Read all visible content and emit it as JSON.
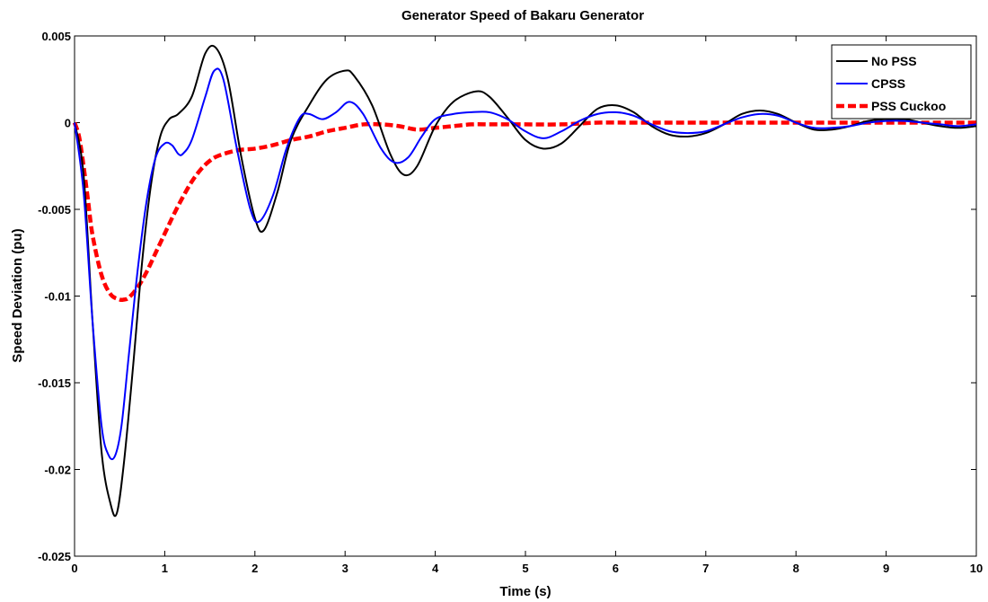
{
  "chart_data": {
    "type": "line",
    "title": "Generator Speed of Bakaru Generator",
    "xlabel": "Time (s)",
    "ylabel": "Speed Deviation (pu)",
    "xlim": [
      0,
      10
    ],
    "ylim": [
      -0.025,
      0.005
    ],
    "x_ticks": [
      0,
      1,
      2,
      3,
      4,
      5,
      6,
      7,
      8,
      9,
      10
    ],
    "x_tick_labels": [
      "0",
      "1",
      "2",
      "3",
      "4",
      "5",
      "6",
      "7",
      "8",
      "9",
      "10"
    ],
    "y_ticks": [
      0.005,
      0,
      -0.005,
      -0.01,
      -0.015,
      -0.02,
      -0.025
    ],
    "y_tick_labels": [
      "0.005",
      "0",
      "-0.005",
      "-0.01",
      "-0.015",
      "-0.02",
      "-0.025"
    ],
    "grid": false,
    "legend_position": "top-right",
    "series": [
      {
        "name": "No PSS",
        "color": "#000000",
        "style": "solid",
        "x": [
          0,
          0.1,
          0.2,
          0.3,
          0.4,
          0.47,
          0.55,
          0.65,
          0.75,
          0.85,
          0.95,
          1.05,
          1.15,
          1.3,
          1.45,
          1.57,
          1.7,
          1.85,
          2.0,
          2.1,
          2.25,
          2.4,
          2.6,
          2.8,
          3.0,
          3.1,
          3.3,
          3.5,
          3.65,
          3.8,
          4.0,
          4.2,
          4.45,
          4.6,
          4.8,
          5.0,
          5.2,
          5.4,
          5.6,
          5.8,
          6.0,
          6.2,
          6.4,
          6.6,
          6.8,
          7.0,
          7.2,
          7.4,
          7.6,
          7.8,
          8.0,
          8.2,
          8.4,
          8.6,
          8.8,
          9.0,
          9.2,
          9.4,
          9.6,
          9.8,
          10.0
        ],
        "y": [
          0,
          -0.003,
          -0.0115,
          -0.019,
          -0.022,
          -0.0225,
          -0.0195,
          -0.014,
          -0.008,
          -0.0035,
          -0.0008,
          0.0002,
          0.0005,
          0.0015,
          0.004,
          0.0043,
          0.0025,
          -0.002,
          -0.0055,
          -0.0062,
          -0.004,
          -0.001,
          0.001,
          0.0025,
          0.003,
          0.0027,
          0.001,
          -0.0018,
          -0.003,
          -0.0025,
          -0.0002,
          0.0012,
          0.0018,
          0.0015,
          0.0003,
          -0.001,
          -0.0015,
          -0.0012,
          -0.0002,
          0.0008,
          0.001,
          0.0006,
          -0.0002,
          -0.0007,
          -0.0008,
          -0.0006,
          -0.0001,
          0.0005,
          0.0007,
          0.0005,
          0.0,
          -0.0004,
          -0.0004,
          -0.0002,
          0.0001,
          0.0002,
          0.0002,
          0.0,
          -0.0002,
          -0.0003,
          -0.0002
        ]
      },
      {
        "name": "CPSS",
        "color": "#0000ff",
        "style": "solid",
        "x": [
          0,
          0.1,
          0.2,
          0.3,
          0.38,
          0.45,
          0.52,
          0.6,
          0.7,
          0.8,
          0.9,
          1.0,
          1.08,
          1.15,
          1.2,
          1.3,
          1.45,
          1.55,
          1.65,
          1.8,
          1.95,
          2.05,
          2.2,
          2.35,
          2.5,
          2.6,
          2.75,
          2.9,
          3.05,
          3.2,
          3.4,
          3.55,
          3.7,
          3.85,
          4.0,
          4.2,
          4.4,
          4.6,
          4.8,
          5.0,
          5.2,
          5.4,
          5.6,
          5.8,
          6.0,
          6.2,
          6.4,
          6.6,
          6.8,
          7.0,
          7.2,
          7.4,
          7.6,
          7.8,
          8.0,
          8.2,
          8.4,
          8.6,
          8.8,
          9.0,
          9.2,
          9.4,
          9.6,
          9.8,
          10.0
        ],
        "y": [
          0,
          -0.004,
          -0.0115,
          -0.0175,
          -0.0192,
          -0.0192,
          -0.0175,
          -0.0135,
          -0.0085,
          -0.0045,
          -0.002,
          -0.0012,
          -0.0013,
          -0.0018,
          -0.0018,
          -0.001,
          0.0015,
          0.003,
          0.0025,
          -0.0015,
          -0.005,
          -0.0057,
          -0.0042,
          -0.0015,
          0.0003,
          0.0005,
          0.0002,
          0.0006,
          0.0012,
          0.0005,
          -0.0015,
          -0.0023,
          -0.002,
          -0.0008,
          0.0002,
          0.0005,
          0.0006,
          0.0006,
          0.0002,
          -0.0005,
          -0.0009,
          -0.0005,
          0.0001,
          0.0005,
          0.0006,
          0.0004,
          -0.0001,
          -0.0005,
          -0.0006,
          -0.0005,
          -0.0001,
          0.0003,
          0.0005,
          0.0004,
          0.0,
          -0.0003,
          -0.0003,
          -0.0002,
          0.0,
          0.0001,
          0.0001,
          0.0,
          -0.0001,
          -0.0002,
          -0.0001
        ]
      },
      {
        "name": "PSS Cuckoo",
        "color": "#ff0000",
        "style": "dashed",
        "x": [
          0,
          0.05,
          0.1,
          0.15,
          0.2,
          0.3,
          0.4,
          0.5,
          0.55,
          0.6,
          0.7,
          0.8,
          0.9,
          1.0,
          1.1,
          1.2,
          1.3,
          1.4,
          1.5,
          1.6,
          1.8,
          2.0,
          2.2,
          2.4,
          2.6,
          2.8,
          3.0,
          3.2,
          3.4,
          3.6,
          3.8,
          4.0,
          4.2,
          4.4,
          4.6,
          4.8,
          5.0,
          5.4,
          5.8,
          6.2,
          6.6,
          7.0,
          7.5,
          8.0,
          8.5,
          9.0,
          9.5,
          10.0
        ],
        "y": [
          0,
          -0.0008,
          -0.0025,
          -0.0045,
          -0.0065,
          -0.0088,
          -0.0099,
          -0.0102,
          -0.0102,
          -0.0101,
          -0.0095,
          -0.0086,
          -0.0075,
          -0.0064,
          -0.0053,
          -0.0043,
          -0.0034,
          -0.0027,
          -0.0022,
          -0.0019,
          -0.0016,
          -0.0015,
          -0.0013,
          -0.001,
          -0.0008,
          -0.0005,
          -0.0003,
          -0.0001,
          -0.0001,
          -0.0002,
          -0.0004,
          -0.0003,
          -0.0002,
          -0.0001,
          -0.0001,
          -0.0001,
          -0.0001,
          -0.0001,
          0.0,
          0.0,
          0.0,
          0.0,
          0.0,
          0.0,
          0.0,
          0.0,
          0.0,
          0.0
        ]
      }
    ]
  }
}
